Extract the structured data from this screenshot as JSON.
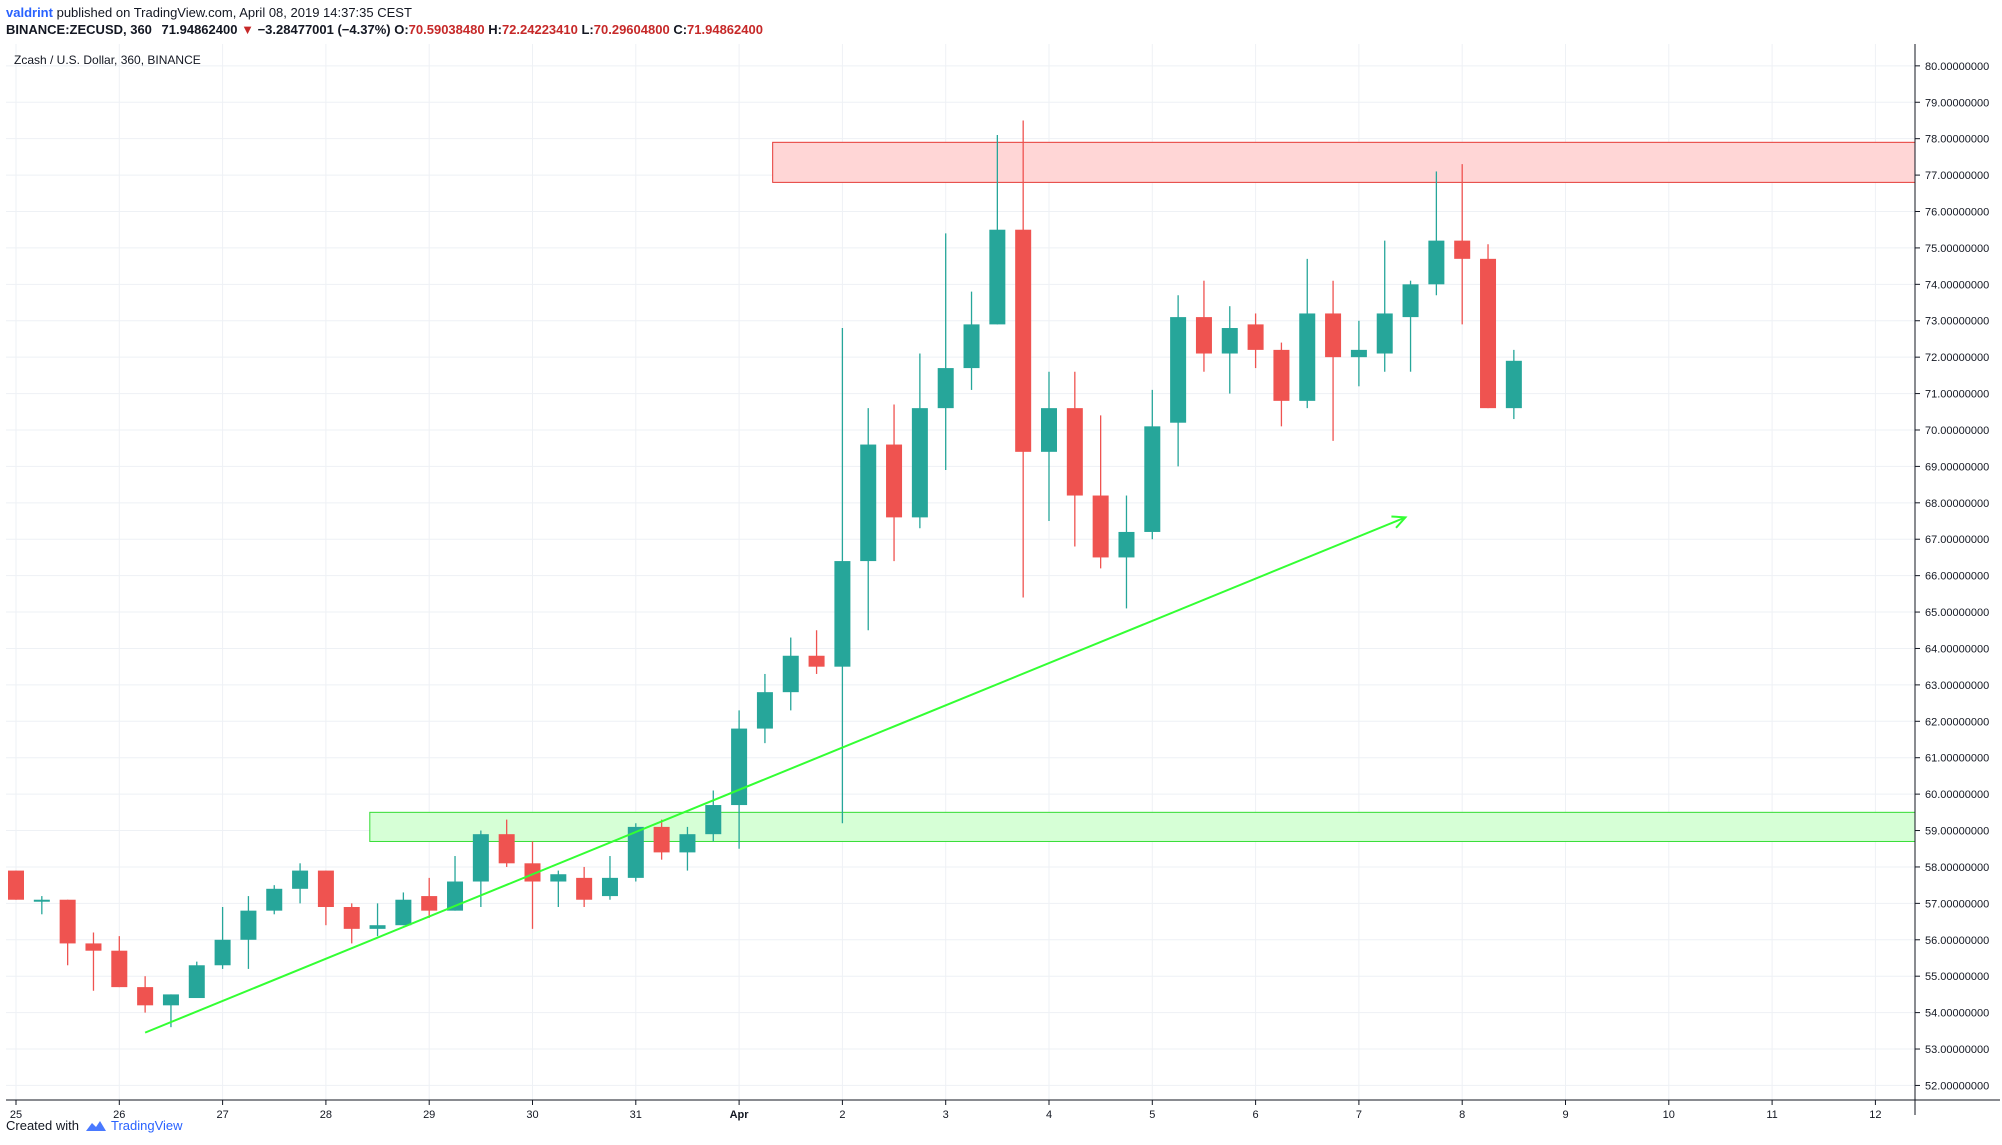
{
  "header": {
    "user": "valdrint",
    "published": "published on TradingView.com, April 08, 2019 14:37:35 CEST",
    "symbol": "BINANCE:ZECUSD, 360",
    "last": "71.94862400",
    "change_arrow": "▼",
    "change": "−3.28477001 (−4.37%)",
    "o_label": "O:",
    "o_value": "70.59038480",
    "h_label": "H:",
    "h_value": "72.24223410",
    "l_label": "L:",
    "l_value": "70.29604800",
    "c_label": "C:",
    "c_value": "71.94862400"
  },
  "footer": {
    "created_with": "Created with",
    "brand": "TradingView"
  },
  "colors": {
    "up": "#26a69a",
    "down": "#ef5350",
    "trendline": "#33ff33",
    "resistance_fill": "#ffd6d6",
    "resistance_border": "#e53935",
    "support_fill": "#d6ffd6",
    "support_border": "#33dd33",
    "grid": "#eef1f5",
    "axis": "#131722"
  },
  "chart_data": {
    "type": "candlestick",
    "title": "Zcash / U.S. Dollar, 360, BINANCE",
    "ylim": [
      51.6,
      80.6
    ],
    "y_ticks": [
      "52.00000000",
      "53.00000000",
      "54.00000000",
      "55.00000000",
      "56.00000000",
      "57.00000000",
      "58.00000000",
      "59.00000000",
      "60.00000000",
      "61.00000000",
      "62.00000000",
      "63.00000000",
      "64.00000000",
      "65.00000000",
      "66.00000000",
      "67.00000000",
      "68.00000000",
      "69.00000000",
      "70.00000000",
      "71.00000000",
      "72.00000000",
      "73.00000000",
      "74.00000000",
      "75.00000000",
      "76.00000000",
      "77.00000000",
      "78.00000000",
      "79.00000000",
      "80.00000000"
    ],
    "x_ticks": [
      "25",
      "26",
      "27",
      "28",
      "29",
      "30",
      "31",
      "Apr",
      "2",
      "3",
      "4",
      "5",
      "6",
      "7",
      "8",
      "9",
      "10",
      "11",
      "12"
    ],
    "candles": [
      {
        "o": 57.9,
        "h": 57.9,
        "l": 57.1,
        "c": 57.1
      },
      {
        "o": 57.1,
        "h": 57.2,
        "l": 56.7,
        "c": 57.1
      },
      {
        "o": 57.1,
        "h": 57.1,
        "l": 55.3,
        "c": 55.9
      },
      {
        "o": 55.9,
        "h": 56.2,
        "l": 54.6,
        "c": 55.7
      },
      {
        "o": 55.7,
        "h": 56.1,
        "l": 54.7,
        "c": 54.7
      },
      {
        "o": 54.7,
        "h": 55.0,
        "l": 54.0,
        "c": 54.2
      },
      {
        "o": 54.2,
        "h": 54.5,
        "l": 53.6,
        "c": 54.5
      },
      {
        "o": 54.4,
        "h": 55.4,
        "l": 54.5,
        "c": 55.3
      },
      {
        "o": 55.3,
        "h": 56.9,
        "l": 55.2,
        "c": 56.0
      },
      {
        "o": 56.0,
        "h": 57.2,
        "l": 55.2,
        "c": 56.8
      },
      {
        "o": 56.8,
        "h": 57.5,
        "l": 56.7,
        "c": 57.4
      },
      {
        "o": 57.4,
        "h": 58.1,
        "l": 57.0,
        "c": 57.9
      },
      {
        "o": 57.9,
        "h": 57.9,
        "l": 56.4,
        "c": 56.9
      },
      {
        "o": 56.9,
        "h": 57.0,
        "l": 55.9,
        "c": 56.3
      },
      {
        "o": 56.3,
        "h": 57.0,
        "l": 56.1,
        "c": 56.4
      },
      {
        "o": 56.4,
        "h": 57.3,
        "l": 56.4,
        "c": 57.1
      },
      {
        "o": 57.2,
        "h": 57.7,
        "l": 56.6,
        "c": 56.8
      },
      {
        "o": 56.8,
        "h": 58.3,
        "l": 56.8,
        "c": 57.6
      },
      {
        "o": 57.6,
        "h": 59.0,
        "l": 56.9,
        "c": 58.9
      },
      {
        "o": 58.9,
        "h": 59.3,
        "l": 58.0,
        "c": 58.1
      },
      {
        "o": 58.1,
        "h": 58.7,
        "l": 56.3,
        "c": 57.6
      },
      {
        "o": 57.6,
        "h": 57.9,
        "l": 56.9,
        "c": 57.8
      },
      {
        "o": 57.7,
        "h": 58.0,
        "l": 56.9,
        "c": 57.1
      },
      {
        "o": 57.2,
        "h": 58.3,
        "l": 57.1,
        "c": 57.7
      },
      {
        "o": 57.7,
        "h": 59.2,
        "l": 57.6,
        "c": 59.1
      },
      {
        "o": 59.1,
        "h": 59.3,
        "l": 58.2,
        "c": 58.4
      },
      {
        "o": 58.4,
        "h": 59.1,
        "l": 57.9,
        "c": 58.9
      },
      {
        "o": 58.9,
        "h": 60.1,
        "l": 58.7,
        "c": 59.7
      },
      {
        "o": 59.7,
        "h": 62.3,
        "l": 58.5,
        "c": 61.8
      },
      {
        "o": 61.8,
        "h": 63.3,
        "l": 61.4,
        "c": 62.8
      },
      {
        "o": 62.8,
        "h": 64.3,
        "l": 62.3,
        "c": 63.8
      },
      {
        "o": 63.8,
        "h": 64.5,
        "l": 63.3,
        "c": 63.5
      },
      {
        "o": 63.5,
        "h": 72.8,
        "l": 59.2,
        "c": 66.4
      },
      {
        "o": 66.4,
        "h": 70.6,
        "l": 64.5,
        "c": 69.6
      },
      {
        "o": 69.6,
        "h": 70.7,
        "l": 66.4,
        "c": 67.6
      },
      {
        "o": 67.6,
        "h": 72.1,
        "l": 67.3,
        "c": 70.6
      },
      {
        "o": 70.6,
        "h": 75.4,
        "l": 68.9,
        "c": 71.7
      },
      {
        "o": 71.7,
        "h": 73.8,
        "l": 71.1,
        "c": 72.9
      },
      {
        "o": 72.9,
        "h": 78.1,
        "l": 72.9,
        "c": 75.5
      },
      {
        "o": 75.5,
        "h": 78.5,
        "l": 65.4,
        "c": 69.4
      },
      {
        "o": 69.4,
        "h": 71.6,
        "l": 67.5,
        "c": 70.6
      },
      {
        "o": 70.6,
        "h": 71.6,
        "l": 66.8,
        "c": 68.2
      },
      {
        "o": 68.2,
        "h": 70.4,
        "l": 66.2,
        "c": 66.5
      },
      {
        "o": 66.5,
        "h": 68.2,
        "l": 65.1,
        "c": 67.2
      },
      {
        "o": 67.2,
        "h": 71.1,
        "l": 67.0,
        "c": 70.1
      },
      {
        "o": 70.2,
        "h": 73.7,
        "l": 69.0,
        "c": 73.1
      },
      {
        "o": 73.1,
        "h": 74.1,
        "l": 71.6,
        "c": 72.1
      },
      {
        "o": 72.1,
        "h": 73.4,
        "l": 71.0,
        "c": 72.8
      },
      {
        "o": 72.9,
        "h": 73.2,
        "l": 71.7,
        "c": 72.2
      },
      {
        "o": 72.2,
        "h": 72.4,
        "l": 70.1,
        "c": 70.8
      },
      {
        "o": 70.8,
        "h": 74.7,
        "l": 70.6,
        "c": 73.2
      },
      {
        "o": 73.2,
        "h": 74.1,
        "l": 69.7,
        "c": 72.0
      },
      {
        "o": 72.0,
        "h": 73.0,
        "l": 71.2,
        "c": 72.2
      },
      {
        "o": 72.1,
        "h": 75.2,
        "l": 71.6,
        "c": 73.2
      },
      {
        "o": 73.1,
        "h": 74.1,
        "l": 71.6,
        "c": 74.0
      },
      {
        "o": 74.0,
        "h": 77.1,
        "l": 73.7,
        "c": 75.2
      },
      {
        "o": 75.2,
        "h": 77.3,
        "l": 72.9,
        "c": 74.7
      },
      {
        "o": 74.7,
        "h": 75.1,
        "l": 70.6,
        "c": 70.6
      },
      {
        "o": 70.6,
        "h": 72.2,
        "l": 70.3,
        "c": 71.9
      }
    ],
    "resistance_zone": [
      76.8,
      77.9
    ],
    "support_zone": [
      58.7,
      59.5
    ]
  }
}
